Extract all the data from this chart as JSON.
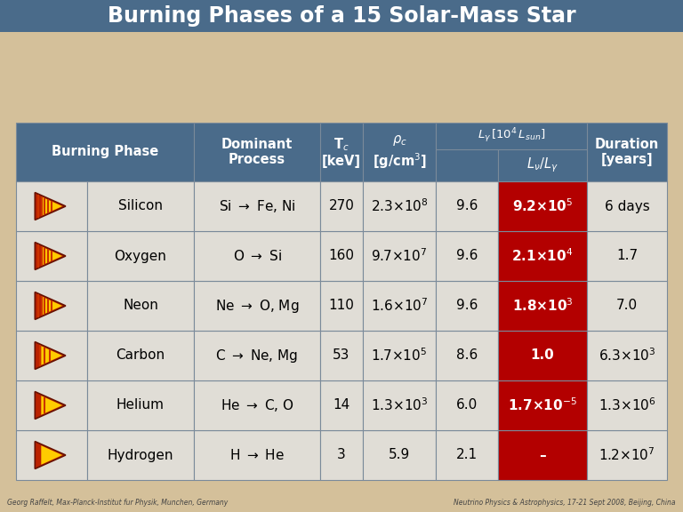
{
  "title": "Burning Phases of a 15 Solar-Mass Star",
  "bg_color": "#d4c09a",
  "header_color": "#4a6b8a",
  "cell_color": "#e0ddd6",
  "red_cell_color": "#b30000",
  "title_bg_color": "#4a6b8a",
  "phases": [
    "Hydrogen",
    "Helium",
    "Carbon",
    "Neon",
    "Oxygen",
    "Silicon"
  ],
  "processes": [
    "H → He",
    "He → C, O",
    "C → Ne, Mg",
    "Ne → O, Mg",
    "O → Si",
    "Si → Fe, Ni"
  ],
  "Tc": [
    "3",
    "14",
    "53",
    "110",
    "160",
    "270"
  ],
  "rho_c": [
    "5.9",
    "1.3×10",
    "1.7×10",
    "1.6×10",
    "9.7×10",
    "2.3×10"
  ],
  "rho_c_exp": [
    "",
    "3",
    "5",
    "7",
    "7",
    "8"
  ],
  "Lgamma": [
    "2.1",
    "6.0",
    "8.6",
    "9.6",
    "9.6",
    "9.6"
  ],
  "Lnu_base": [
    "–",
    "1.7×10",
    "1.0",
    "1.8×10",
    "2.1×10",
    "9.2×10"
  ],
  "Lnu_exp": [
    "",
    "-5",
    "",
    "3",
    "4",
    "5"
  ],
  "duration_base": [
    "1.2×10",
    "1.3×10",
    "6.3×10",
    "7.0",
    "1.7",
    "6 days"
  ],
  "duration_exp": [
    "7",
    "6",
    "3",
    "",
    "",
    ""
  ],
  "flame_lines": [
    0,
    1,
    3,
    5,
    5,
    5
  ],
  "footer_left": "Georg Raffelt, Max-Planck-Institut fur Physik, Munchen, Germany",
  "footer_right": "Neutrino Physics & Astrophysics, 17-21 Sept 2008, Beijing, China"
}
